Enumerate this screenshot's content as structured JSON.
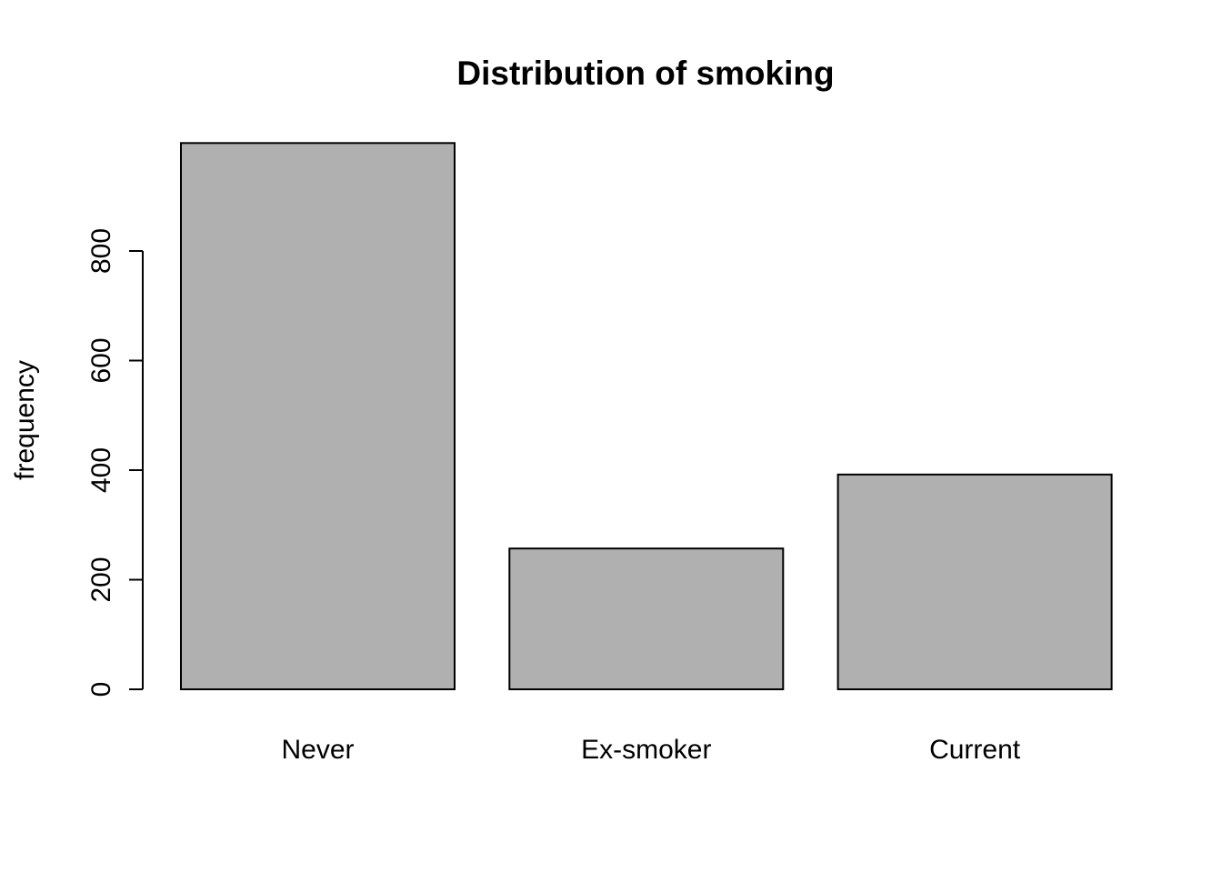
{
  "chart_data": {
    "type": "bar",
    "title": "Distribution of smoking",
    "xlabel": "",
    "ylabel": "frequency",
    "categories": [
      "Never",
      "Ex-smoker",
      "Current"
    ],
    "values": [
      997,
      257,
      392
    ],
    "ylim": [
      0,
      1000
    ],
    "yticks": [
      0,
      200,
      400,
      600,
      800
    ],
    "ytick_labels": [
      "0",
      "200",
      "400",
      "600",
      "800"
    ],
    "grid": false,
    "legend": "none",
    "bar_fill": "#b0b0b0",
    "bar_stroke": "#000000"
  }
}
